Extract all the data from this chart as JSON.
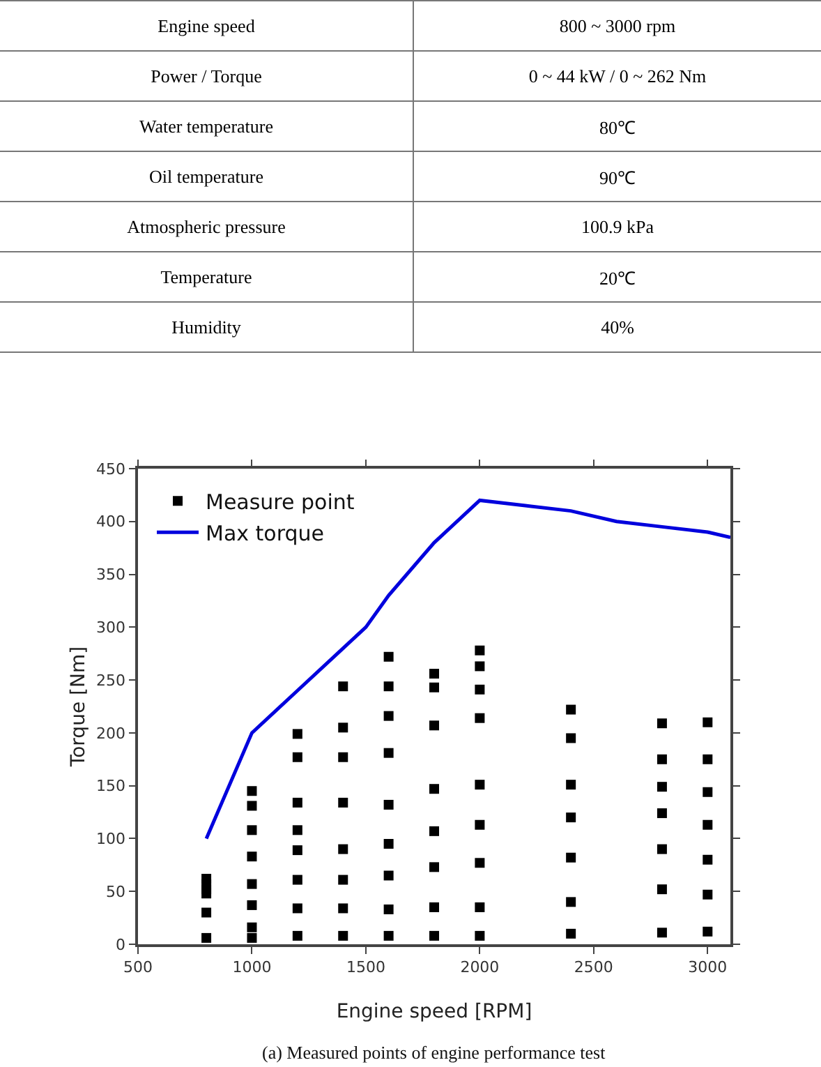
{
  "chart_data": [
    {
      "type": "other",
      "annotations": [
        "Engine speed",
        "800 ~ 3000 rpm",
        "Power / Torque",
        "0 ~ 44 kW / 0 ~ 262 Nm",
        "Water temperature",
        "80℃",
        "Oil temperature",
        "90℃",
        "Atmospheric pressure",
        "100.9 kPa",
        "Temperature",
        "20℃",
        "Humidity",
        "40%"
      ]
    },
    {
      "type": "scatter",
      "xlabel": "Engine speed [RPM]",
      "ylabel": "Torque [Nm]",
      "xlim": [
        500,
        3100
      ],
      "xticks": [
        500,
        1000,
        1500,
        2000,
        2500,
        3000
      ],
      "ylim": [
        0,
        450
      ],
      "yticks": [
        0,
        50,
        100,
        150,
        200,
        250,
        300,
        350,
        400,
        450
      ],
      "grid": false,
      "legend": "top left",
      "annotations": [
        "(a) Measured points of engine performance test"
      ],
      "series": [
        {
          "name": "Measure point",
          "type": "scatter",
          "marker": "square",
          "color": "#000000",
          "x": [
            800,
            800,
            800,
            800,
            800,
            800,
            1000,
            1000,
            1000,
            1000,
            1000,
            1000,
            1000,
            1000,
            1200,
            1200,
            1200,
            1200,
            1200,
            1200,
            1200,
            1200,
            1400,
            1400,
            1400,
            1400,
            1400,
            1400,
            1400,
            1400,
            1600,
            1600,
            1600,
            1600,
            1600,
            1600,
            1600,
            1600,
            1600,
            1800,
            1800,
            1800,
            1800,
            1800,
            1800,
            1800,
            1800,
            2000,
            2000,
            2000,
            2000,
            2000,
            2000,
            2000,
            2000,
            2000,
            2400,
            2400,
            2400,
            2400,
            2400,
            2400,
            2400,
            2800,
            2800,
            2800,
            2800,
            2800,
            2800,
            2800,
            3000,
            3000,
            3000,
            3000,
            3000,
            3000,
            3000
          ],
          "values": [
            6,
            30,
            48,
            52,
            57,
            62,
            6,
            16,
            37,
            57,
            83,
            108,
            131,
            145,
            8,
            34,
            61,
            89,
            108,
            134,
            177,
            199,
            8,
            34,
            61,
            90,
            134,
            177,
            205,
            244,
            8,
            33,
            65,
            95,
            132,
            181,
            216,
            244,
            272,
            8,
            35,
            73,
            107,
            147,
            207,
            243,
            256,
            8,
            35,
            77,
            113,
            151,
            214,
            241,
            263,
            278,
            10,
            40,
            82,
            120,
            151,
            195,
            222,
            11,
            52,
            90,
            124,
            149,
            175,
            209,
            12,
            47,
            80,
            113,
            144,
            175,
            210
          ]
        },
        {
          "name": "Max torque",
          "type": "line",
          "color": "#0000dd",
          "marker": "none",
          "line_style": "solid",
          "x": [
            800,
            1000,
            1200,
            1400,
            1500,
            1600,
            1800,
            2000,
            2200,
            2400,
            2600,
            2800,
            3000,
            3100
          ],
          "values": [
            100,
            200,
            240,
            280,
            300,
            330,
            380,
            420,
            415,
            410,
            400,
            395,
            390,
            385
          ]
        }
      ]
    }
  ]
}
